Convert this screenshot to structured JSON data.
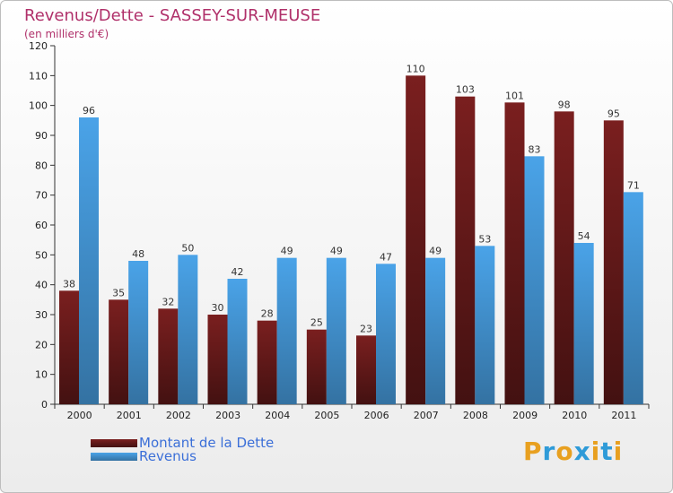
{
  "title": "Revenus/Dette - SASSEY-SUR-MEUSE",
  "subtitle": "(en milliers d'€)",
  "logo": {
    "text": "Proxiti",
    "letters": [
      {
        "ch": "P",
        "color": "#e8a020"
      },
      {
        "ch": "r",
        "color": "#2f9bd8"
      },
      {
        "ch": "o",
        "color": "#e8a020"
      },
      {
        "ch": "x",
        "color": "#2f9bd8"
      },
      {
        "ch": "i",
        "color": "#e8a020"
      },
      {
        "ch": "t",
        "color": "#2f9bd8"
      },
      {
        "ch": "i",
        "color": "#e8a020"
      }
    ]
  },
  "chart_data": {
    "type": "bar",
    "title": "Revenus/Dette - SASSEY-SUR-MEUSE",
    "subtitle": "(en milliers d'€)",
    "categories": [
      "2000",
      "2001",
      "2002",
      "2003",
      "2004",
      "2005",
      "2006",
      "2007",
      "2008",
      "2009",
      "2010",
      "2011"
    ],
    "series": [
      {
        "name": "Montant de la Dette",
        "color": "#7a1f1f",
        "values": [
          38,
          35,
          32,
          30,
          28,
          25,
          23,
          110,
          103,
          101,
          98,
          95
        ]
      },
      {
        "name": "Revenus",
        "color": "#4aa3e8",
        "values": [
          96,
          48,
          50,
          42,
          49,
          49,
          47,
          49,
          53,
          83,
          54,
          71
        ]
      }
    ],
    "ylim": [
      0,
      120
    ],
    "yticks": [
      0,
      10,
      20,
      30,
      40,
      50,
      60,
      70,
      80,
      90,
      100,
      110,
      120
    ],
    "grid": false,
    "legend_position": "bottom-left"
  }
}
